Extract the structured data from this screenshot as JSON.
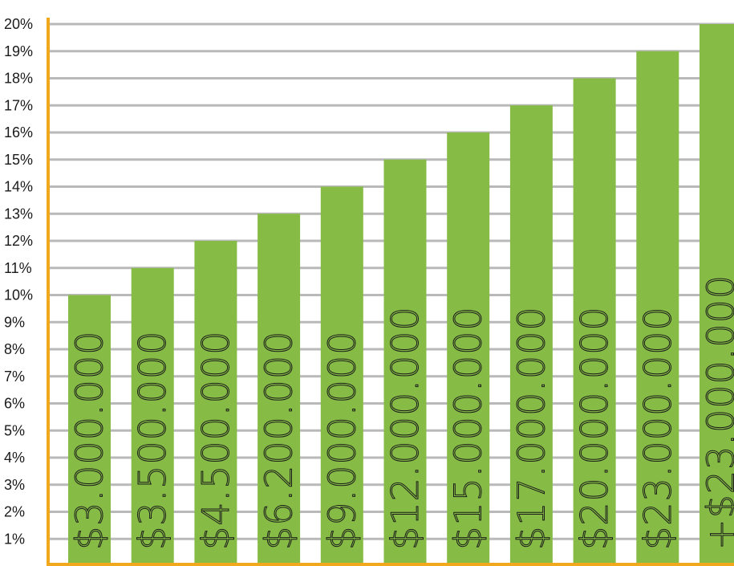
{
  "chart_data": {
    "type": "bar",
    "categories": [
      "$3.000.000",
      "$3.500.000",
      "$4.500.000",
      "$6.200.000",
      "$9.000.000",
      "$12.000.000",
      "$15.000.000",
      "$17.000.000",
      "$20.000.000",
      "$23.000.000",
      "+$23.000.000"
    ],
    "values": [
      10,
      11,
      12,
      13,
      14,
      15,
      16,
      17,
      18,
      19,
      20
    ],
    "y_ticks": [
      "1%",
      "2%",
      "3%",
      "4%",
      "5%",
      "6%",
      "7%",
      "8%",
      "9%",
      "10%",
      "11%",
      "12%",
      "13%",
      "14%",
      "15%",
      "16%",
      "17%",
      "18%",
      "19%",
      "20%"
    ],
    "ylim": [
      0,
      20
    ],
    "grid": true,
    "legend": "none",
    "colors": {
      "bar": "#86bc46",
      "axis": "#f2a81d",
      "grid": "#b9b9b9",
      "text": "#1a1a1a"
    }
  }
}
